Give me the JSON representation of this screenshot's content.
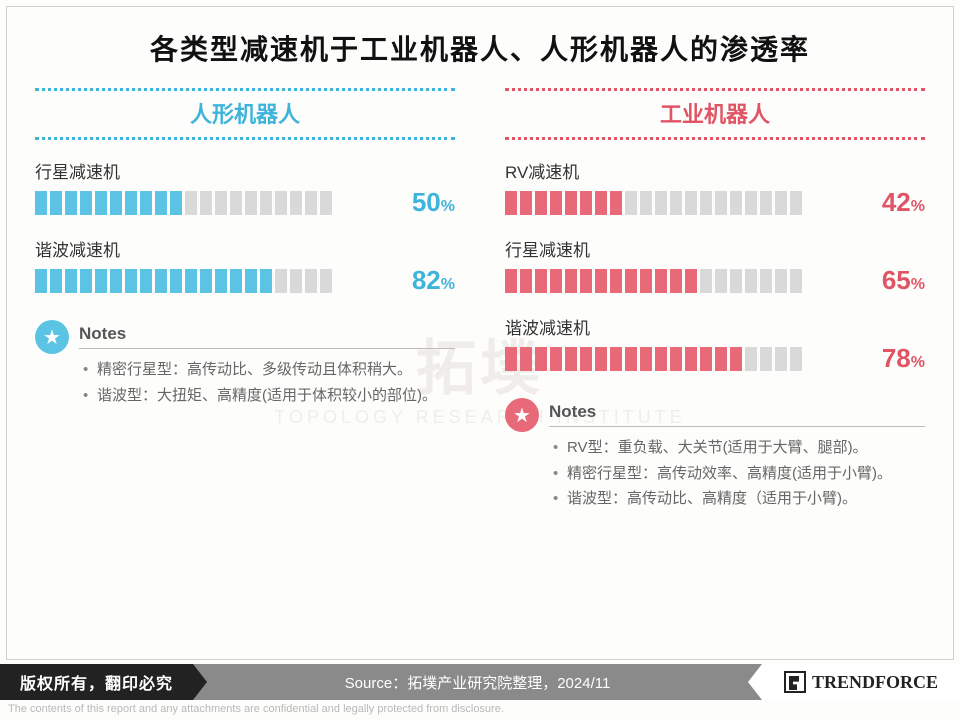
{
  "title": "各类型减速机于工业机器人、人形机器人的渗透率",
  "segments_total": 20,
  "empty_color": "#d9d9d9",
  "columns": [
    {
      "header": "人形机器人",
      "color": "#5bc4e4",
      "header_color": "#3fb4db",
      "items": [
        {
          "label": "行星减速机",
          "pct": 50
        },
        {
          "label": "谐波减速机",
          "pct": 82
        }
      ],
      "notes_title": "Notes",
      "star_bg": "#5bc4e4",
      "notes": [
        "精密行星型：高传动比、多级传动且体积稍大。",
        "谐波型：大扭矩、高精度(适用于体积较小的部位)。"
      ]
    },
    {
      "header": "工业机器人",
      "color": "#e86a78",
      "header_color": "#e05566",
      "items": [
        {
          "label": "RV减速机",
          "pct": 42
        },
        {
          "label": "行星减速机",
          "pct": 65
        },
        {
          "label": "谐波减速机",
          "pct": 78
        }
      ],
      "notes_title": "Notes",
      "star_bg": "#e86a78",
      "notes": [
        "RV型：重负载、大关节(适用于大臂、腿部)。",
        "精密行星型：高传动效率、高精度(适用于小臂)。",
        "谐波型：高传动比、高精度（适用于小臂)。"
      ]
    }
  ],
  "watermark": {
    "big": "拓墣",
    "small": "TOPOLOGY RESEARCH INSTITUTE"
  },
  "footer": {
    "copyright": "版权所有，翻印必究",
    "source": "Source：拓墣产业研究院整理，2024/11",
    "brand": "TRENDFORCE",
    "disclaimer": "The contents of this report and any attachments are confidential and legally protected from disclosure."
  }
}
